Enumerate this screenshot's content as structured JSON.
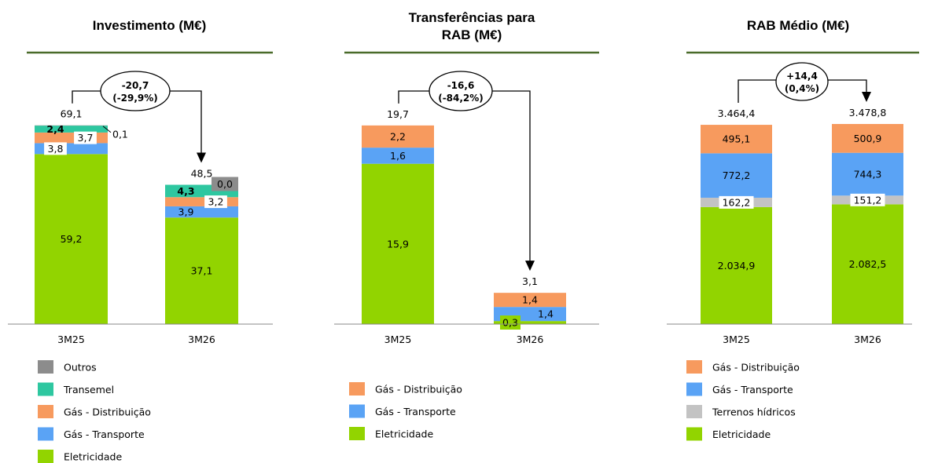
{
  "colors": {
    "title_rule": "#4a6b2a",
    "axis": "#8a8a8a",
    "delta_line": "#000000"
  },
  "chart_data": [
    {
      "type": "bar",
      "stacked": true,
      "title": "Investimento (M€)",
      "categories": [
        "3M25",
        "3M26"
      ],
      "series": [
        {
          "name": "Eletricidade",
          "color": "#92d400",
          "values": [
            59.2,
            37.1
          ],
          "labels": [
            "59,2",
            "37,1"
          ]
        },
        {
          "name": "Gás - Transporte",
          "color": "#5aa3f5",
          "values": [
            3.8,
            3.9
          ],
          "labels": [
            "3,8",
            "3,9"
          ]
        },
        {
          "name": "Gás - Distribuição",
          "color": "#f79a5e",
          "values": [
            3.7,
            3.2
          ],
          "labels": [
            "3,7",
            "3,2"
          ]
        },
        {
          "name": "Transemel",
          "color": "#2ec7a0",
          "values": [
            2.4,
            4.3
          ],
          "labels": [
            "2,4",
            "4,3"
          ]
        },
        {
          "name": "Outros",
          "color": "#8c8c8c",
          "values": [
            0.1,
            0.0
          ],
          "labels": [
            "0,1",
            "0,0"
          ]
        }
      ],
      "totals": [
        "69,1",
        "48,5"
      ],
      "delta": {
        "value": "-20,7",
        "pct": "(-29,9%)"
      },
      "legend": [
        "Outros",
        "Transemel",
        "Gás - Distribuição",
        "Gás - Transporte",
        "Eletricidade"
      ],
      "legend_position": "bottom-left"
    },
    {
      "type": "bar",
      "stacked": true,
      "title": "Transferências para RAB (M€)",
      "categories": [
        "3M25",
        "3M26"
      ],
      "series": [
        {
          "name": "Eletricidade",
          "color": "#92d400",
          "values": [
            15.9,
            0.3
          ],
          "labels": [
            "15,9",
            "0,3"
          ]
        },
        {
          "name": "Gás - Transporte",
          "color": "#5aa3f5",
          "values": [
            1.6,
            1.4
          ],
          "labels": [
            "1,6",
            "1,4"
          ]
        },
        {
          "name": "Gás - Distribuição",
          "color": "#f79a5e",
          "values": [
            2.2,
            1.4
          ],
          "labels": [
            "2,2",
            "1,4"
          ]
        }
      ],
      "totals": [
        "19,7",
        "3,1"
      ],
      "delta": {
        "value": "-16,6",
        "pct": "(-84,2%)"
      },
      "legend": [
        "Gás - Distribuição",
        "Gás - Transporte",
        "Eletricidade"
      ],
      "legend_position": "bottom-left"
    },
    {
      "type": "bar",
      "stacked": true,
      "title": "RAB Médio (M€)",
      "categories": [
        "3M25",
        "3M26"
      ],
      "series": [
        {
          "name": "Eletricidade",
          "color": "#92d400",
          "values": [
            2034.9,
            2082.5
          ],
          "labels": [
            "2.034,9",
            "2.082,5"
          ]
        },
        {
          "name": "Terrenos hídricos",
          "color": "#c3c3c3",
          "values": [
            162.2,
            151.2
          ],
          "labels": [
            "162,2",
            "151,2"
          ]
        },
        {
          "name": "Gás - Transporte",
          "color": "#5aa3f5",
          "values": [
            772.2,
            744.3
          ],
          "labels": [
            "772,2",
            "744,3"
          ]
        },
        {
          "name": "Gás - Distribuição",
          "color": "#f79a5e",
          "values": [
            495.1,
            500.9
          ],
          "labels": [
            "495,1",
            "500,9"
          ]
        }
      ],
      "totals": [
        "3.464,4",
        "3.478,8"
      ],
      "delta": {
        "value": "+14,4",
        "pct": "(0,4%)"
      },
      "legend": [
        "Gás - Distribuição",
        "Gás - Transporte",
        "Terrenos hídricos",
        "Eletricidade"
      ],
      "legend_position": "bottom-left"
    }
  ]
}
